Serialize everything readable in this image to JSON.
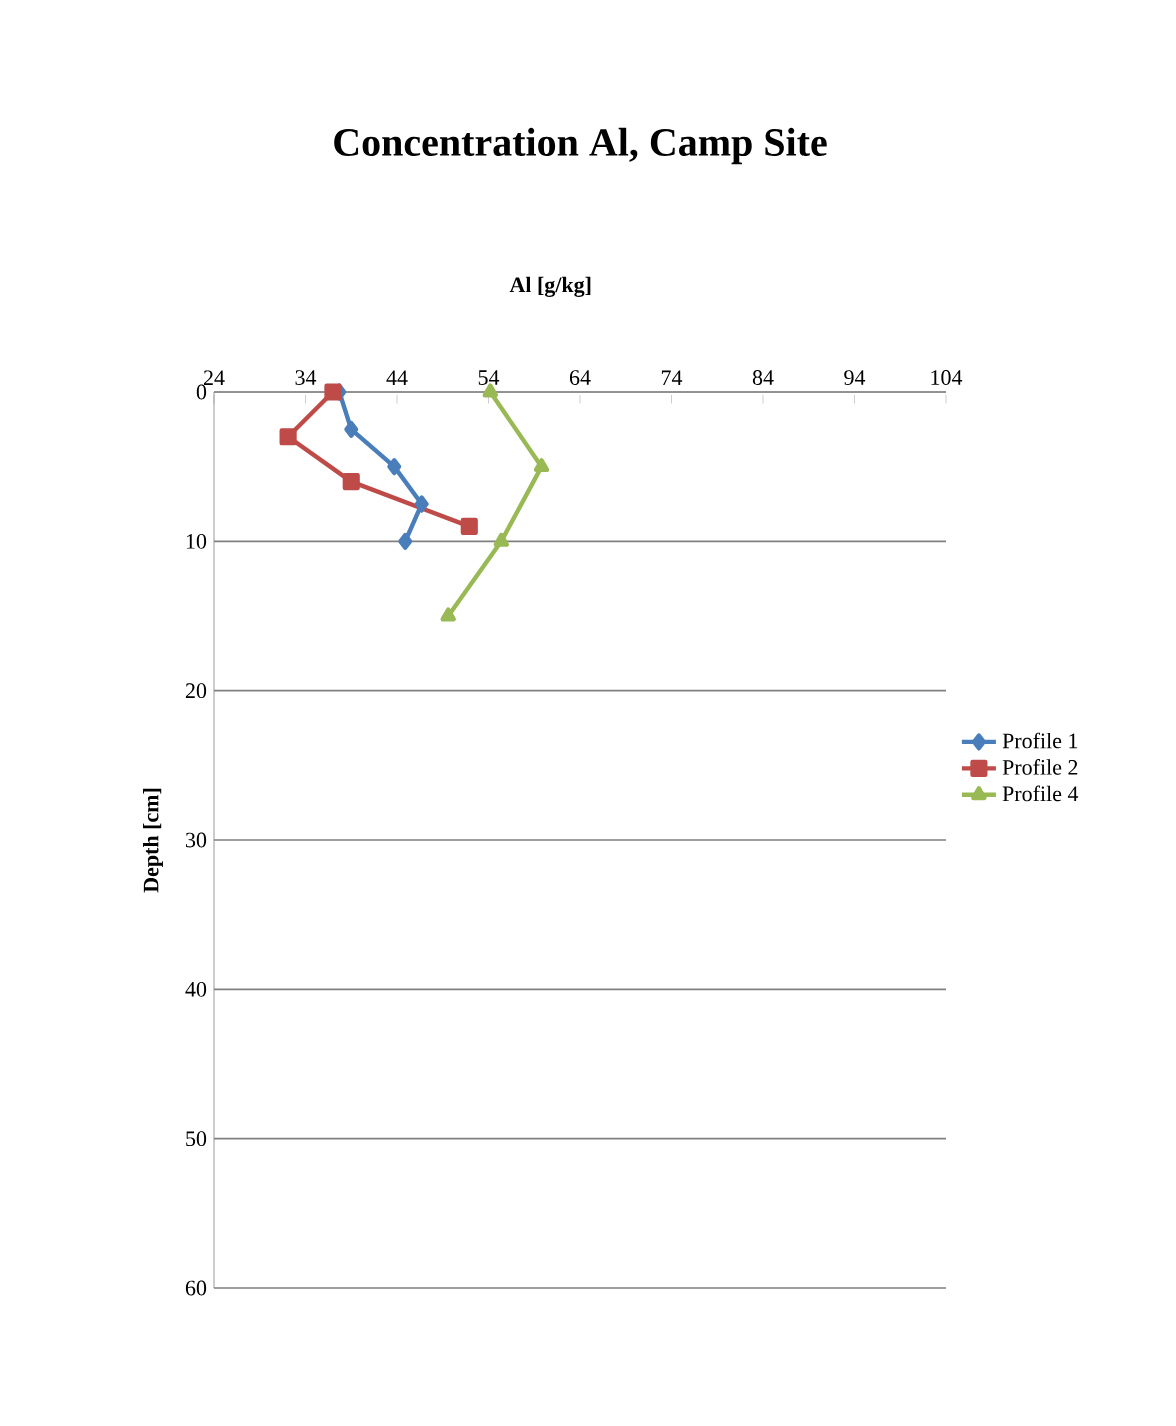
{
  "chart_data": {
    "type": "line",
    "title": "Concentration Al, Camp Site",
    "xlabel": "Al [g/kg]",
    "ylabel": "Depth [cm]",
    "xlim": [
      24,
      104
    ],
    "xticks": [
      24,
      34,
      44,
      54,
      64,
      74,
      84,
      94,
      104
    ],
    "ylim": [
      60,
      0
    ],
    "yticks": [
      0,
      10,
      20,
      30,
      40,
      50,
      60
    ],
    "grid": "y",
    "legend": "right",
    "line_style": "solid",
    "series": [
      {
        "name": "Profile 1",
        "color": "#4a7ebb",
        "marker": "diamond",
        "x": [
          37.7,
          39.0,
          43.7,
          46.7,
          44.9
        ],
        "values": [
          0,
          2.5,
          5,
          7.5,
          10
        ]
      },
      {
        "name": "Profile 2",
        "color": "#be4b48",
        "marker": "square",
        "x": [
          37.0,
          32.1,
          39.0,
          51.9
        ],
        "values": [
          0,
          3,
          6,
          9
        ]
      },
      {
        "name": "Profile 4",
        "color": "#98b954",
        "marker": "triangle",
        "x": [
          54.2,
          59.8,
          55.4,
          49.6
        ],
        "values": [
          0,
          5,
          10,
          15
        ]
      }
    ]
  }
}
